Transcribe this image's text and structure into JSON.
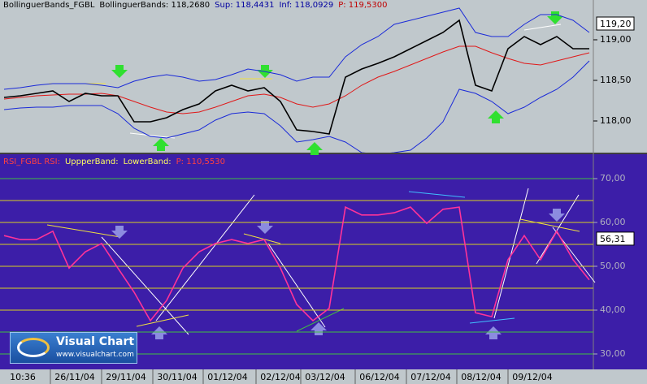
{
  "header_top": [
    {
      "text": "BollinguerBands_FGBL",
      "color": "#000000"
    },
    {
      "text": "BollinguerBands: 118,2680",
      "color": "#000000"
    },
    {
      "text": "Sup: 118,4431",
      "color": "#0000a0"
    },
    {
      "text": "Inf: 118,0929",
      "color": "#0000a0"
    },
    {
      "text": "P: 119,5300",
      "color": "#c00000"
    }
  ],
  "header_bottom": [
    {
      "text": "RSI_FGBL RSI:",
      "color": "#ff4040"
    },
    {
      "text": "UppperBand:",
      "color": "#ffff60"
    },
    {
      "text": "LowerBand:",
      "color": "#ffff60"
    },
    {
      "text": "P: 110,5530",
      "color": "#ff4040"
    }
  ],
  "logo": {
    "title": "Visual Chart",
    "url": "www.visualchart.com"
  },
  "chart_data": [
    {
      "type": "line",
      "xlim": [
        -0.25,
        36.25
      ],
      "ylim": [
        117.61,
        119.49
      ],
      "yticks": [
        {
          "value": 119,
          "label": "119,00"
        },
        {
          "value": 118.5,
          "label": "118,50"
        },
        {
          "value": 118,
          "label": "118,00"
        }
      ],
      "current": {
        "value": 119.2,
        "label": "119,20"
      },
      "series": [
        {
          "name": "Sup",
          "color": "#1a2ad8",
          "values": [
            118.39,
            118.41,
            118.44,
            118.46,
            118.46,
            118.46,
            118.44,
            118.41,
            118.49,
            118.54,
            118.57,
            118.54,
            118.49,
            118.51,
            118.57,
            118.64,
            118.61,
            118.57,
            118.49,
            118.54,
            118.54,
            118.79,
            118.94,
            119.04,
            119.19,
            119.24,
            119.29,
            119.34,
            119.39,
            119.09,
            119.04,
            119.04,
            119.19,
            119.31,
            119.31,
            119.24,
            119.09
          ]
        },
        {
          "name": "Inf",
          "color": "#1a2ad8",
          "values": [
            118.14,
            118.16,
            118.17,
            118.17,
            118.19,
            118.19,
            118.19,
            118.09,
            117.91,
            117.81,
            117.79,
            117.84,
            117.89,
            118.01,
            118.09,
            118.11,
            118.09,
            117.94,
            117.74,
            117.77,
            117.81,
            117.74,
            117.61,
            117.59,
            117.61,
            117.64,
            117.79,
            117.99,
            118.39,
            118.34,
            118.24,
            118.09,
            118.17,
            118.29,
            118.39,
            118.54,
            118.74
          ]
        },
        {
          "name": "BollinguerBands",
          "color": "#e01818",
          "values": [
            118.27,
            118.29,
            118.31,
            118.32,
            118.33,
            118.33,
            118.34,
            118.31,
            118.24,
            118.17,
            118.11,
            118.09,
            118.11,
            118.17,
            118.24,
            118.31,
            118.33,
            118.29,
            118.21,
            118.17,
            118.21,
            118.31,
            118.44,
            118.54,
            118.61,
            118.69,
            118.77,
            118.85,
            118.92,
            118.92,
            118.84,
            118.77,
            118.71,
            118.69,
            118.74,
            118.79,
            118.84
          ]
        },
        {
          "name": "P",
          "color": "#000000",
          "values": [
            118.29,
            118.31,
            118.34,
            118.37,
            118.24,
            118.34,
            118.31,
            118.31,
            117.99,
            117.99,
            118.04,
            118.14,
            118.21,
            118.37,
            118.44,
            118.37,
            118.41,
            118.24,
            117.89,
            117.87,
            117.84,
            118.54,
            118.64,
            118.71,
            118.79,
            118.89,
            118.99,
            119.09,
            119.24,
            118.44,
            118.37,
            118.89,
            119.04,
            118.94,
            119.04,
            118.89,
            118.89
          ]
        }
      ]
    },
    {
      "type": "line",
      "xlim": [
        -0.25,
        36.25
      ],
      "ylim": [
        26.48,
        75.56
      ],
      "yticks": [
        {
          "value": 70,
          "label": "70,00"
        },
        {
          "value": 60,
          "label": "60,00"
        },
        {
          "value": 50,
          "label": "50,00"
        },
        {
          "value": 40,
          "label": "40,00"
        },
        {
          "value": 30,
          "label": "30,00"
        }
      ],
      "hlines": [
        {
          "value": 70,
          "color": "#40c040"
        },
        {
          "value": 65,
          "color": "#d8d020"
        },
        {
          "value": 60,
          "color": "#d8d020"
        },
        {
          "value": 55,
          "color": "#d8d020"
        },
        {
          "value": 50,
          "color": "#d8d020"
        },
        {
          "value": 45,
          "color": "#d8d020"
        },
        {
          "value": 40,
          "color": "#d8d020"
        },
        {
          "value": 35,
          "color": "#40c040"
        },
        {
          "value": 30,
          "color": "#40c040"
        }
      ],
      "current": {
        "value": 56.31,
        "label": "56,31"
      },
      "xticks": [
        {
          "value": 1.15,
          "label": "10:36"
        },
        {
          "value": 4.35,
          "label": "26/11/04"
        },
        {
          "value": 7.5,
          "label": "29/11/04"
        },
        {
          "value": 10.65,
          "label": "30/11/04"
        },
        {
          "value": 13.75,
          "label": "01/12/04"
        },
        {
          "value": 17,
          "label": "02/12/04"
        },
        {
          "value": 19.75,
          "label": "03/12/04"
        },
        {
          "value": 23.1,
          "label": "06/12/04"
        },
        {
          "value": 26.25,
          "label": "07/12/04"
        },
        {
          "value": 29.35,
          "label": "08/12/04"
        },
        {
          "value": 32.5,
          "label": "09/12/04"
        }
      ],
      "series": [
        {
          "name": "RSI",
          "color": "#ff3399",
          "values": [
            57.0,
            56.1,
            56.1,
            58.0,
            49.6,
            53.3,
            55.2,
            49.6,
            44.1,
            37.6,
            42.2,
            49.6,
            53.3,
            55.2,
            56.1,
            55.2,
            56.1,
            49.6,
            41.3,
            37.6,
            40.4,
            63.5,
            61.7,
            61.7,
            62.2,
            63.5,
            59.8,
            63.0,
            63.5,
            39.4,
            38.5,
            51.5,
            57.0,
            51.5,
            58.0,
            51.5,
            46.9
          ]
        }
      ]
    }
  ]
}
